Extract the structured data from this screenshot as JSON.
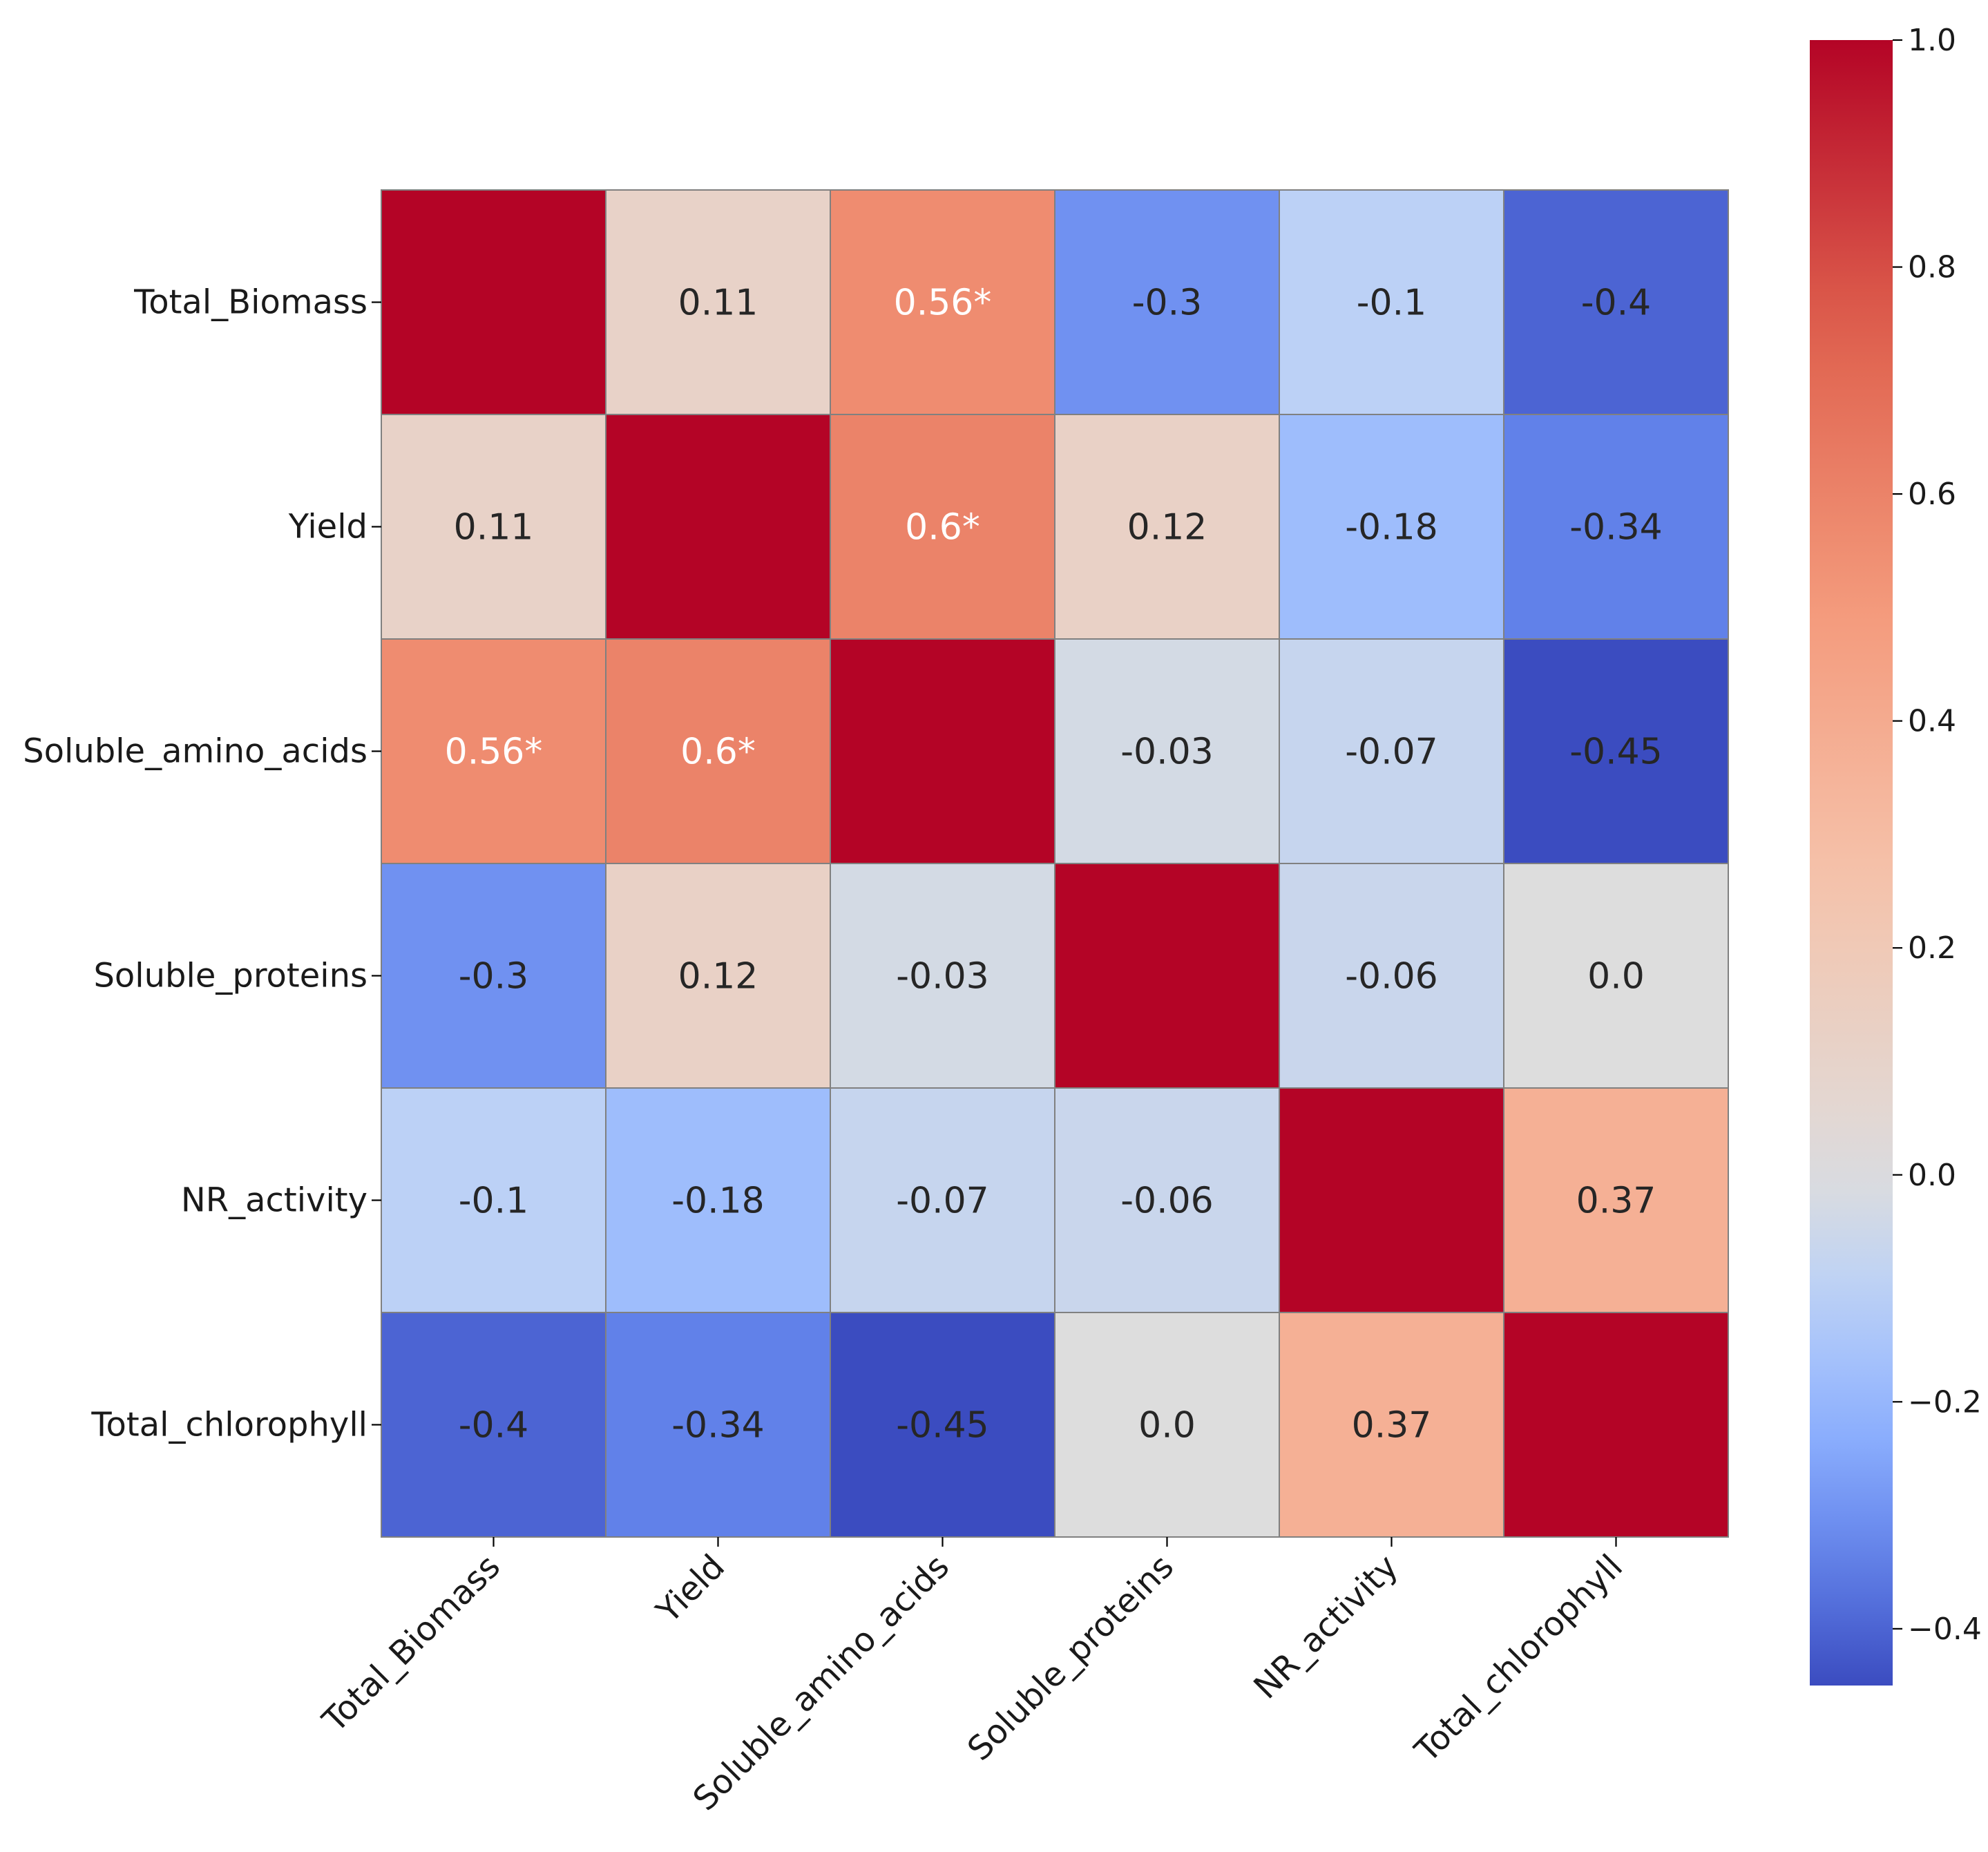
{
  "chart_data": {
    "type": "heatmap",
    "title": "",
    "rows": [
      "Total_Biomass",
      "Yield",
      "Soluble_amino_acids",
      "Soluble_proteins",
      "NR_activity",
      "Total_chlorophyll"
    ],
    "columns": [
      "Total_Biomass",
      "Yield",
      "Soluble_amino_acids",
      "Soluble_proteins",
      "NR_activity",
      "Total_chlorophyll"
    ],
    "values": [
      [
        1.0,
        0.11,
        0.56,
        -0.3,
        -0.1,
        -0.4
      ],
      [
        0.11,
        1.0,
        0.6,
        0.12,
        -0.18,
        -0.34
      ],
      [
        0.56,
        0.6,
        1.0,
        -0.03,
        -0.07,
        -0.45
      ],
      [
        -0.3,
        0.12,
        -0.03,
        1.0,
        -0.06,
        0.0
      ],
      [
        -0.1,
        -0.18,
        -0.07,
        -0.06,
        1.0,
        0.37
      ],
      [
        -0.4,
        -0.34,
        -0.45,
        0.0,
        0.37,
        1.0
      ]
    ],
    "annotations": [
      [
        "",
        "0.11",
        "0.56*",
        "-0.3",
        "-0.1",
        "-0.4"
      ],
      [
        "0.11",
        "",
        "0.6*",
        "0.12",
        "-0.18",
        "-0.34"
      ],
      [
        "0.56*",
        "0.6*",
        "",
        "-0.03",
        "-0.07",
        "-0.45"
      ],
      [
        "-0.3",
        "0.12",
        "-0.03",
        "",
        "-0.06",
        "0.0"
      ],
      [
        "-0.1",
        "-0.18",
        "-0.07",
        "-0.06",
        "",
        "0.37"
      ],
      [
        "-0.4",
        "-0.34",
        "-0.45",
        "0.0",
        "0.37",
        ""
      ]
    ],
    "colormap": "coolwarm",
    "vmin": -0.45,
    "vmax": 1.0,
    "colorbar_ticks": [
      1.0,
      0.8,
      0.6,
      0.4,
      0.2,
      0.0,
      -0.2,
      -0.4
    ],
    "colorbar_tick_labels": [
      "1.0",
      "0.8",
      "0.6",
      "0.4",
      "0.2",
      "0.0",
      "−0.2",
      "−0.4"
    ],
    "colors": {
      "light_text": "#ffffff",
      "dark_text": "#262626",
      "cell_border": "#808080"
    }
  }
}
